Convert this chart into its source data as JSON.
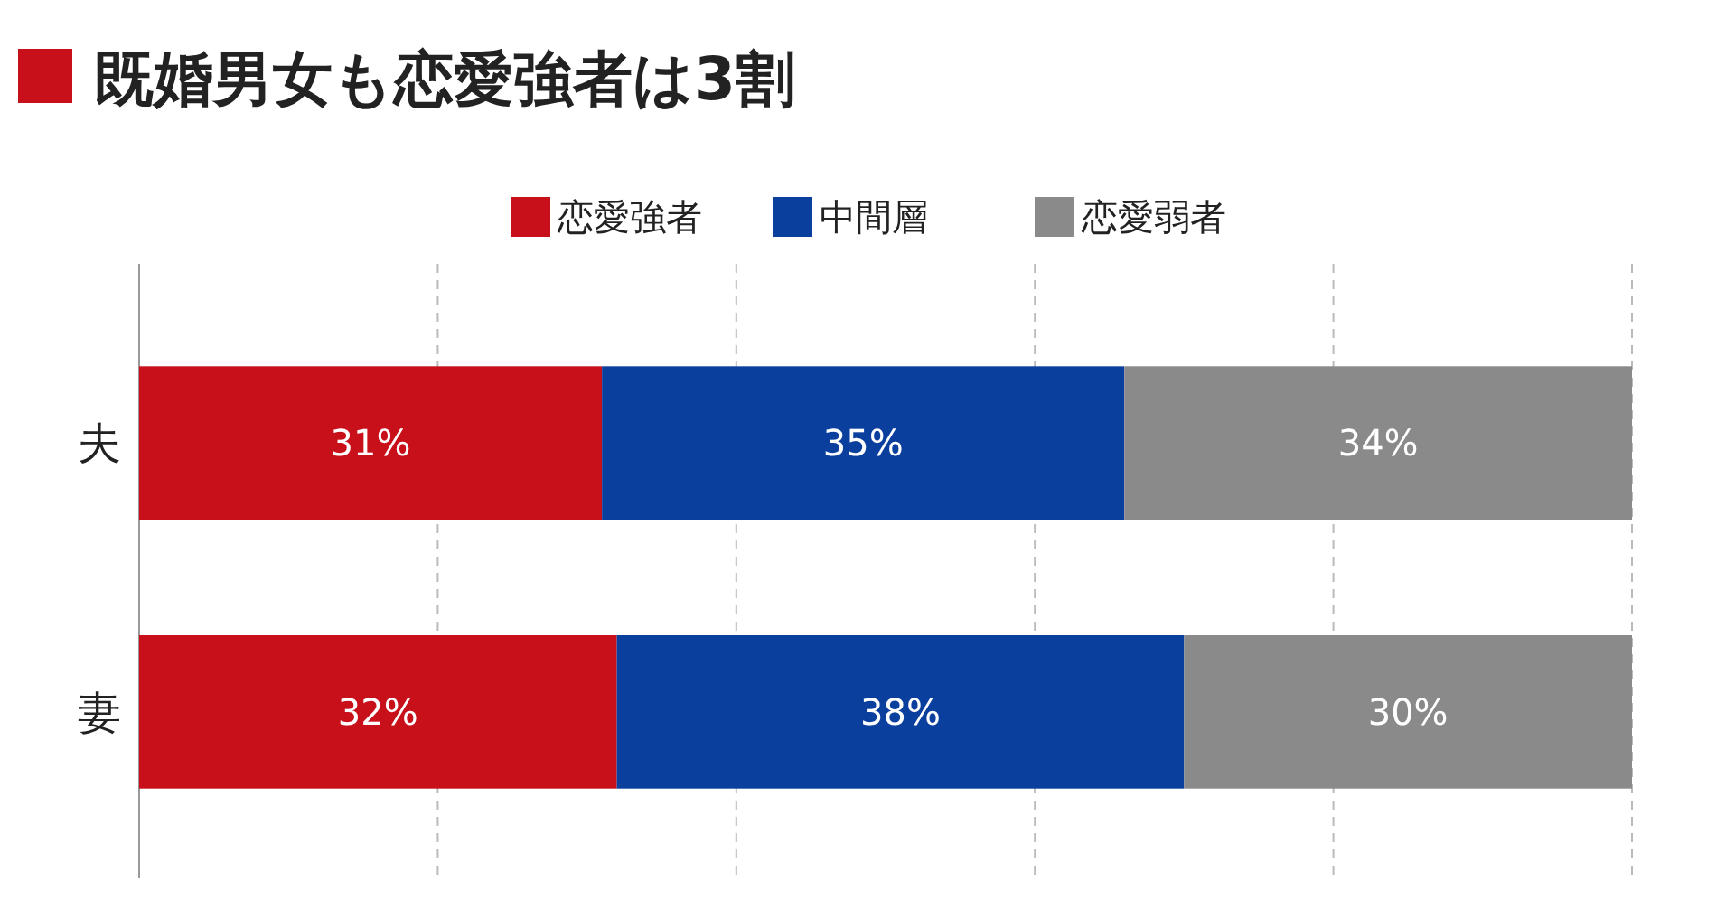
{
  "chart_data": {
    "type": "bar",
    "title": "既婚男女も恋愛強者は3割",
    "orientation": "horizontal",
    "stacked": true,
    "categories": [
      "夫",
      "妻"
    ],
    "series": [
      {
        "name": "恋愛強者",
        "color": "#c8101a",
        "values": [
          31,
          32
        ],
        "value_labels": [
          "31%",
          "32%"
        ]
      },
      {
        "name": "中間層",
        "color": "#0b3f9e",
        "values": [
          35,
          38
        ],
        "value_labels": [
          "35%",
          "38%"
        ]
      },
      {
        "name": "恋愛弱者",
        "color": "#8a8a8a",
        "values": [
          34,
          30
        ],
        "value_labels": [
          "34%",
          "30%"
        ]
      }
    ],
    "tick_labels": "y",
    "grid": "x",
    "legend": "top"
  }
}
